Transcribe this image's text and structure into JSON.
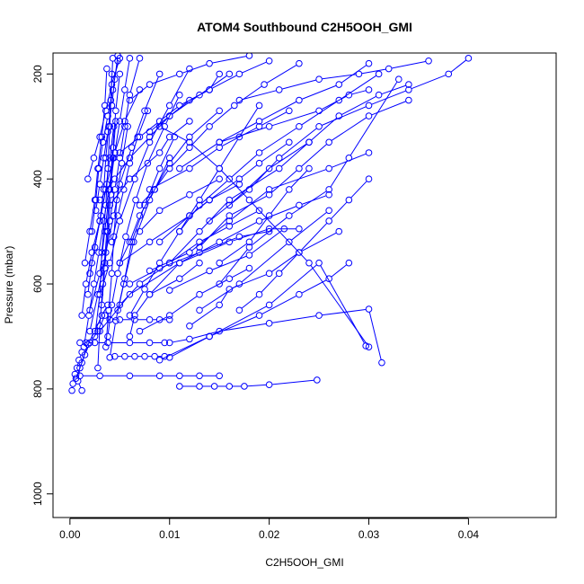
{
  "chart_data": {
    "type": "scatter",
    "title": "ATOM4 Southbound C2H5OOH_GMI",
    "xlabel": "C2H5OOH_GMI",
    "ylabel": "Pressure (mbar)",
    "xlim": [
      -0.0017,
      0.0488
    ],
    "ylim": [
      1045,
      160
    ],
    "y_reversed": true,
    "x_ticks": [
      0.0,
      0.01,
      0.02,
      0.03,
      0.04
    ],
    "x_tick_labels": [
      "0.00",
      "0.01",
      "0.02",
      "0.03",
      "0.04"
    ],
    "y_ticks": [
      200,
      400,
      600,
      800,
      1000
    ],
    "y_tick_labels": [
      "200",
      "400",
      "600",
      "800",
      "1000"
    ],
    "grid": false,
    "legend": "none",
    "color": "#0000ff",
    "marker": "open-circle",
    "series": [
      {
        "x": [
          0.0002,
          0.0003,
          0.0005,
          0.0007,
          0.0009,
          0.0012
        ],
        "y": [
          803,
          790,
          772,
          760,
          745,
          730
        ]
      },
      {
        "x": [
          0.0012,
          0.0008,
          0.001,
          0.0015,
          0.002,
          0.0028,
          0.0035
        ],
        "y": [
          803,
          785,
          760,
          735,
          712,
          690,
          660
        ]
      },
      {
        "x": [
          0.0006,
          0.0012,
          0.0018,
          0.0025,
          0.0032,
          0.0038
        ],
        "y": [
          780,
          750,
          715,
          690,
          660,
          640
        ]
      },
      {
        "x": [
          0.001,
          0.0016,
          0.0025,
          0.0038,
          0.006,
          0.008,
          0.0095
        ],
        "y": [
          712,
          712,
          712,
          712,
          712,
          712,
          712
        ]
      },
      {
        "x": [
          0.004,
          0.005,
          0.0065,
          0.008,
          0.009,
          0.01
        ],
        "y": [
          668,
          668,
          668,
          668,
          668,
          668
        ]
      },
      {
        "x": [
          0.0045,
          0.0055,
          0.0065,
          0.0075,
          0.0085,
          0.0095
        ],
        "y": [
          738,
          738,
          738,
          738,
          738,
          738
        ]
      },
      {
        "x": [
          0.001,
          0.003,
          0.006,
          0.009,
          0.011,
          0.013,
          0.015
        ],
        "y": [
          775,
          775,
          775,
          775,
          775,
          775,
          775
        ]
      },
      {
        "x": [
          0.011,
          0.013,
          0.0145,
          0.016,
          0.0175,
          0.02,
          0.0248
        ],
        "y": [
          795,
          795,
          795,
          795,
          795,
          792,
          783
        ]
      },
      {
        "x": [
          0.01,
          0.012,
          0.015,
          0.02,
          0.025,
          0.03,
          0.0313
        ],
        "y": [
          712,
          705,
          690,
          675,
          660,
          648,
          750
        ]
      },
      {
        "x": [
          0.009,
          0.014,
          0.02,
          0.025,
          0.0297
        ],
        "y": [
          745,
          700,
          640,
          560,
          718
        ]
      },
      {
        "x": [
          0.003,
          0.006,
          0.011,
          0.016,
          0.02,
          0.023
        ],
        "y": [
          690,
          620,
          560,
          520,
          495,
          495
        ]
      },
      {
        "x": [
          0.01,
          0.014,
          0.018,
          0.0215
        ],
        "y": [
          612,
          575,
          545,
          495
        ]
      },
      {
        "x": [
          0.008,
          0.012,
          0.016,
          0.02,
          0.026,
          0.03
        ],
        "y": [
          575,
          540,
          480,
          420,
          380,
          350
        ]
      },
      {
        "x": [
          0.015,
          0.018,
          0.022,
          0.026,
          0.028,
          0.033
        ],
        "y": [
          600,
          530,
          470,
          420,
          360,
          210
        ]
      },
      {
        "x": [
          0.016,
          0.02,
          0.024,
          0.027,
          0.031,
          0.034
        ],
        "y": [
          450,
          380,
          330,
          280,
          240,
          220
        ]
      },
      {
        "x": [
          0.014,
          0.018,
          0.021,
          0.025,
          0.03,
          0.034,
          0.038,
          0.04
        ],
        "y": [
          480,
          420,
          360,
          300,
          260,
          230,
          200,
          170
        ]
      },
      {
        "x": [
          0.013,
          0.016,
          0.02,
          0.023,
          0.026,
          0.03,
          0.034
        ],
        "y": [
          530,
          470,
          430,
          380,
          330,
          280,
          250
        ]
      },
      {
        "x": [
          0.017,
          0.021,
          0.025,
          0.029,
          0.032,
          0.036
        ],
        "y": [
          250,
          230,
          210,
          200,
          190,
          175
        ]
      },
      {
        "x": [
          0.015,
          0.019,
          0.023,
          0.027,
          0.03
        ],
        "y": [
          330,
          290,
          250,
          220,
          180
        ]
      },
      {
        "x": [
          0.006,
          0.008,
          0.011,
          0.014,
          0.018
        ],
        "y": [
          250,
          220,
          200,
          180,
          165
        ]
      },
      {
        "x": [
          0.008,
          0.01,
          0.012,
          0.014,
          0.015
        ],
        "y": [
          310,
          280,
          250,
          230,
          200
        ]
      },
      {
        "x": [
          0.005,
          0.007,
          0.009,
          0.011,
          0.014,
          0.017,
          0.02
        ],
        "y": [
          350,
          320,
          290,
          260,
          230,
          200,
          175
        ]
      },
      {
        "x": [
          0.004,
          0.006,
          0.009,
          0.01,
          0.012
        ],
        "y": [
          450,
          400,
          350,
          320,
          290
        ]
      },
      {
        "x": [
          0.008,
          0.012,
          0.015,
          0.019,
          0.022
        ],
        "y": [
          420,
          380,
          340,
          300,
          270
        ]
      },
      {
        "x": [
          0.011,
          0.015,
          0.02,
          0.025,
          0.028,
          0.03
        ],
        "y": [
          380,
          330,
          300,
          270,
          240,
          230
        ]
      },
      {
        "x": [
          0.01,
          0.013,
          0.016,
          0.021,
          0.024
        ],
        "y": [
          560,
          500,
          440,
          380,
          330
        ]
      },
      {
        "x": [
          0.013,
          0.017,
          0.022,
          0.026
        ],
        "y": [
          650,
          600,
          520,
          460
        ]
      },
      {
        "x": [
          0.008,
          0.011,
          0.015,
          0.019,
          0.023,
          0.026
        ],
        "y": [
          620,
          560,
          520,
          480,
          450,
          430
        ]
      },
      {
        "x": [
          0.007,
          0.009,
          0.012,
          0.015
        ],
        "y": [
          500,
          460,
          430,
          400
        ]
      },
      {
        "x": [
          0.006,
          0.009,
          0.013,
          0.017,
          0.02
        ],
        "y": [
          600,
          570,
          540,
          510,
          500
        ]
      },
      {
        "x": [
          0.005,
          0.007,
          0.01,
          0.013,
          0.016,
          0.019
        ],
        "y": [
          640,
          600,
          560,
          520,
          490,
          460
        ]
      },
      {
        "x": [
          0.007,
          0.01,
          0.013,
          0.016,
          0.018
        ],
        "y": [
          690,
          660,
          620,
          590,
          570
        ]
      },
      {
        "x": [
          0.005,
          0.008,
          0.012,
          0.014,
          0.017
        ],
        "y": [
          560,
          520,
          470,
          440,
          410
        ]
      },
      {
        "x": [
          0.009,
          0.012,
          0.014,
          0.017,
          0.019,
          0.022
        ],
        "y": [
          520,
          470,
          440,
          400,
          370,
          330
        ]
      },
      {
        "x": [
          0.012,
          0.015,
          0.016,
          0.02,
          0.023,
          0.027
        ],
        "y": [
          680,
          640,
          610,
          580,
          540,
          500
        ]
      },
      {
        "x": [
          0.006,
          0.0065,
          0.008,
          0.011,
          0.013
        ],
        "y": [
          700,
          660,
          620,
          590,
          560
        ]
      },
      {
        "x": [
          0.01,
          0.014,
          0.019,
          0.023,
          0.026,
          0.028
        ],
        "y": [
          740,
          700,
          660,
          620,
          590,
          560
        ]
      },
      {
        "x": [
          0.009,
          0.012,
          0.015,
          0.018,
          0.024,
          0.03
        ],
        "y": [
          300,
          330,
          380,
          440,
          560,
          720
        ]
      },
      {
        "x": [
          0.017,
          0.019,
          0.021,
          0.023,
          0.026,
          0.028,
          0.03
        ],
        "y": [
          650,
          620,
          580,
          540,
          480,
          440,
          400
        ]
      },
      {
        "x": [
          0.015,
          0.018,
          0.02,
          0.022,
          0.024
        ],
        "y": [
          560,
          520,
          470,
          420,
          380
        ]
      },
      {
        "x": [
          0.002,
          0.003,
          0.0035,
          0.004,
          0.0045,
          0.005,
          0.0055,
          0.006
        ],
        "y": [
          650,
          580,
          500,
          420,
          350,
          290,
          230,
          170
        ]
      },
      {
        "x": [
          0.0025,
          0.003,
          0.0032,
          0.0036,
          0.0038,
          0.004,
          0.0042
        ],
        "y": [
          700,
          620,
          540,
          450,
          380,
          300,
          200
        ]
      },
      {
        "x": [
          0.0018,
          0.0022,
          0.003,
          0.0034,
          0.0036,
          0.0039,
          0.0041,
          0.0043
        ],
        "y": [
          620,
          560,
          480,
          420,
          360,
          300,
          250,
          170
        ]
      },
      {
        "x": [
          0.0028,
          0.003,
          0.0033,
          0.0037,
          0.004,
          0.0043,
          0.0046,
          0.005
        ],
        "y": [
          760,
          680,
          600,
          500,
          420,
          340,
          270,
          200
        ]
      },
      {
        "x": [
          0.0035,
          0.004,
          0.0045,
          0.005,
          0.0055,
          0.006,
          0.007
        ],
        "y": [
          560,
          480,
          420,
          360,
          300,
          240,
          170
        ]
      },
      {
        "x": [
          0.0015,
          0.002,
          0.0025,
          0.0028,
          0.0032,
          0.0035,
          0.0037
        ],
        "y": [
          560,
          500,
          440,
          380,
          320,
          260,
          190
        ]
      },
      {
        "x": [
          0.002,
          0.0028,
          0.0036,
          0.0044,
          0.005,
          0.0062,
          0.0075,
          0.009
        ],
        "y": [
          690,
          620,
          540,
          470,
          410,
          340,
          270,
          200
        ]
      },
      {
        "x": [
          0.003,
          0.004,
          0.005,
          0.0065,
          0.008,
          0.01,
          0.012
        ],
        "y": [
          620,
          560,
          480,
          400,
          330,
          260,
          190
        ]
      },
      {
        "x": [
          0.0022,
          0.0026,
          0.0029,
          0.0033,
          0.0038,
          0.0043,
          0.0048
        ],
        "y": [
          500,
          440,
          380,
          330,
          280,
          230,
          175
        ]
      },
      {
        "x": [
          0.0018,
          0.0024,
          0.003,
          0.0036,
          0.0042,
          0.005
        ],
        "y": [
          400,
          360,
          320,
          270,
          220,
          170
        ]
      },
      {
        "x": [
          0.0012,
          0.0016,
          0.0022,
          0.003,
          0.0036,
          0.004,
          0.0044
        ],
        "y": [
          660,
          600,
          540,
          480,
          420,
          360,
          300
        ]
      },
      {
        "x": [
          0.0038,
          0.0042,
          0.0048,
          0.0056,
          0.0066,
          0.0078,
          0.0095,
          0.011
        ],
        "y": [
          700,
          640,
          580,
          510,
          440,
          370,
          300,
          240
        ]
      },
      {
        "x": [
          0.004,
          0.0046,
          0.0054,
          0.0064,
          0.008,
          0.01
        ],
        "y": [
          740,
          670,
          600,
          520,
          440,
          360
        ]
      },
      {
        "x": [
          0.0048,
          0.0055,
          0.0062,
          0.0075,
          0.009,
          0.0105
        ],
        "y": [
          650,
          590,
          520,
          450,
          380,
          320
        ]
      },
      {
        "x": [
          0.0026,
          0.003,
          0.0034,
          0.0038,
          0.0042,
          0.0045,
          0.0048
        ],
        "y": [
          460,
          410,
          360,
          310,
          260,
          210,
          165
        ]
      },
      {
        "x": [
          0.0032,
          0.0035,
          0.0038,
          0.0041,
          0.0043,
          0.0046
        ],
        "y": [
          640,
          570,
          500,
          430,
          360,
          290
        ]
      },
      {
        "x": [
          0.0036,
          0.0039,
          0.0042,
          0.0044,
          0.0047,
          0.0052,
          0.0058
        ],
        "y": [
          720,
          650,
          580,
          510,
          440,
          370,
          300
        ]
      },
      {
        "x": [
          0.0042,
          0.0048,
          0.0054,
          0.006,
          0.0068,
          0.0078
        ],
        "y": [
          520,
          470,
          420,
          370,
          320,
          270
        ]
      },
      {
        "x": [
          0.002,
          0.0025,
          0.0031,
          0.0037,
          0.0045,
          0.0055,
          0.007
        ],
        "y": [
          580,
          530,
          470,
          410,
          350,
          290,
          230
        ]
      },
      {
        "x": [
          0.0014,
          0.0019,
          0.0024,
          0.0029,
          0.0034,
          0.0039,
          0.0044
        ],
        "y": [
          720,
          660,
          600,
          540,
          480,
          420,
          360
        ]
      },
      {
        "x": [
          0.005,
          0.006,
          0.007,
          0.0085,
          0.01,
          0.012,
          0.015
        ],
        "y": [
          560,
          520,
          470,
          420,
          370,
          320,
          270
        ]
      },
      {
        "x": [
          0.006,
          0.0075,
          0.009,
          0.011,
          0.013,
          0.015,
          0.017,
          0.019
        ],
        "y": [
          660,
          610,
          560,
          500,
          440,
          380,
          320,
          260
        ]
      },
      {
        "x": [
          0.003,
          0.0045,
          0.006,
          0.008,
          0.01,
          0.013,
          0.016
        ],
        "y": [
          440,
          400,
          360,
          320,
          280,
          240,
          200
        ]
      },
      {
        "x": [
          0.007,
          0.0085,
          0.01,
          0.012,
          0.014,
          0.0165,
          0.0195,
          0.023
        ],
        "y": [
          450,
          420,
          380,
          340,
          300,
          260,
          220,
          180
        ]
      },
      {
        "x": [
          0.011,
          0.013,
          0.016,
          0.019,
          0.023,
          0.027,
          0.031
        ],
        "y": [
          500,
          450,
          400,
          350,
          300,
          250,
          200
        ]
      }
    ]
  }
}
